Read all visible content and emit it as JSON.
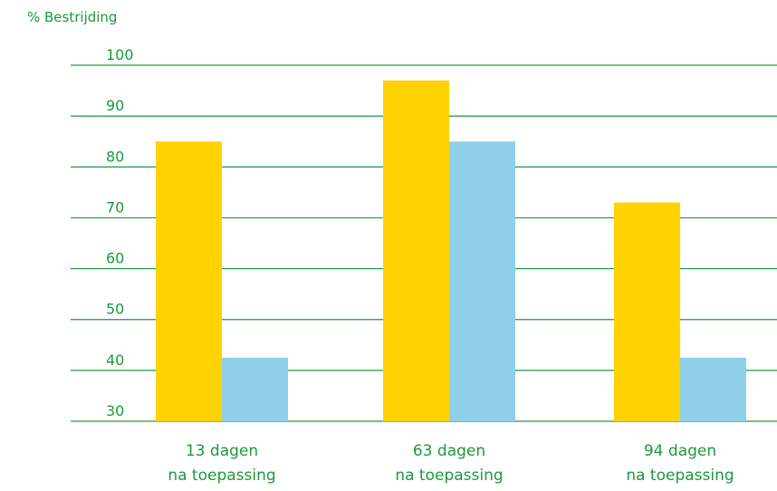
{
  "chart_data": {
    "type": "bar",
    "ylabel": "% Bestrijding",
    "ylim": [
      30,
      100
    ],
    "yticks": [
      30,
      40,
      50,
      60,
      70,
      80,
      90,
      100
    ],
    "grid": true,
    "categories": [
      {
        "num": "13",
        "line1_rest": " dagen",
        "line2": "na toepassing"
      },
      {
        "num": "63",
        "line1_rest": " dagen",
        "line2": "na toepassing"
      },
      {
        "num": "94",
        "line1_rest": " dagen",
        "line2": "na toepassing"
      }
    ],
    "series": [
      {
        "color": "#ffd200",
        "values": [
          85,
          97,
          73
        ]
      },
      {
        "color": "#8ecfea",
        "values": [
          42.5,
          85,
          42.5
        ]
      }
    ],
    "colors": {
      "text": "#1a9a3a",
      "grid": "#1a9a3a"
    }
  }
}
